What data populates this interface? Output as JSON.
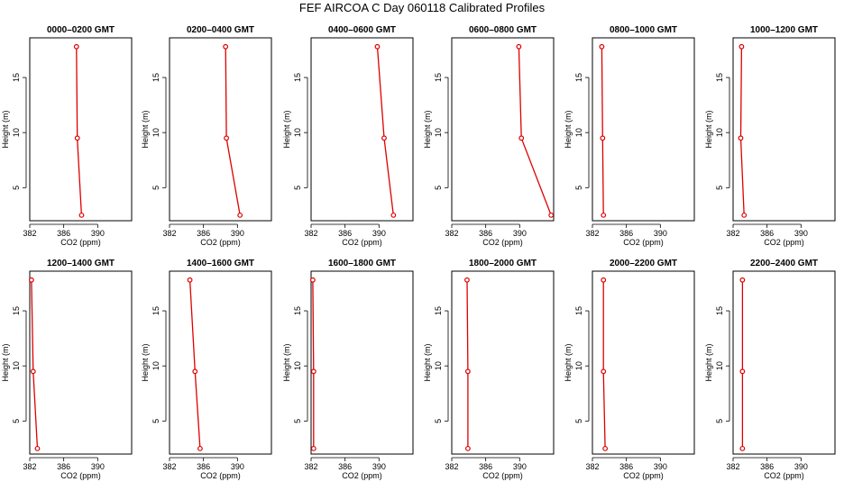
{
  "title": "FEF AIRCOA C  Day 060118  Calibrated Profiles",
  "axis_labels": {
    "x": "CO2 (ppm)",
    "y": "Height (m)"
  },
  "colors": {
    "profile": "#dd0000",
    "frame": "#000000",
    "background": "#ffffff"
  },
  "chart_data": [
    {
      "type": "line",
      "title": "0000–0200 GMT",
      "xlabel": "CO2 (ppm)",
      "ylabel": "Height (m)",
      "xlim": [
        382,
        394
      ],
      "ylim": [
        2,
        18.6
      ],
      "xticks": [
        382,
        386,
        390
      ],
      "yticks": [
        5,
        10,
        15
      ],
      "series": [
        {
          "x": [
            388.1,
            387.6,
            387.5
          ],
          "y": [
            2.5,
            9.5,
            17.8
          ]
        }
      ]
    },
    {
      "type": "line",
      "title": "0200–0400 GMT",
      "xlabel": "CO2 (ppm)",
      "ylabel": "Height (m)",
      "xlim": [
        382,
        394
      ],
      "ylim": [
        2,
        18.6
      ],
      "xticks": [
        382,
        386,
        390
      ],
      "yticks": [
        5,
        10,
        15
      ],
      "series": [
        {
          "x": [
            390.3,
            388.7,
            388.6
          ],
          "y": [
            2.5,
            9.5,
            17.8
          ]
        }
      ]
    },
    {
      "type": "line",
      "title": "0400–0600 GMT",
      "xlabel": "CO2 (ppm)",
      "ylabel": "Height (m)",
      "xlim": [
        382,
        394
      ],
      "ylim": [
        2,
        18.6
      ],
      "xticks": [
        382,
        386,
        390
      ],
      "yticks": [
        5,
        10,
        15
      ],
      "series": [
        {
          "x": [
            391.7,
            390.6,
            389.8
          ],
          "y": [
            2.5,
            9.5,
            17.8
          ]
        }
      ]
    },
    {
      "type": "line",
      "title": "0600–0800 GMT",
      "xlabel": "CO2 (ppm)",
      "ylabel": "Height (m)",
      "xlim": [
        382,
        394
      ],
      "ylim": [
        2,
        18.6
      ],
      "xticks": [
        382,
        386,
        390
      ],
      "yticks": [
        5,
        10,
        15
      ],
      "series": [
        {
          "x": [
            393.7,
            390.2,
            389.9
          ],
          "y": [
            2.5,
            9.5,
            17.8
          ]
        }
      ]
    },
    {
      "type": "line",
      "title": "0800–1000 GMT",
      "xlabel": "CO2 (ppm)",
      "ylabel": "Height (m)",
      "xlim": [
        382,
        394
      ],
      "ylim": [
        2,
        18.6
      ],
      "xticks": [
        382,
        386,
        390
      ],
      "yticks": [
        5,
        10,
        15
      ],
      "series": [
        {
          "x": [
            383.3,
            383.2,
            383.1
          ],
          "y": [
            2.5,
            9.5,
            17.8
          ]
        }
      ]
    },
    {
      "type": "line",
      "title": "1000–1200 GMT",
      "xlabel": "CO2 (ppm)",
      "ylabel": "Height (m)",
      "xlim": [
        382,
        394
      ],
      "ylim": [
        2,
        18.6
      ],
      "xticks": [
        382,
        386,
        390
      ],
      "yticks": [
        5,
        10,
        15
      ],
      "series": [
        {
          "x": [
            383.3,
            382.9,
            383.0
          ],
          "y": [
            2.5,
            9.5,
            17.8
          ]
        }
      ]
    },
    {
      "type": "line",
      "title": "1200–1400 GMT",
      "xlabel": "CO2 (ppm)",
      "ylabel": "Height (m)",
      "xlim": [
        382,
        394
      ],
      "ylim": [
        2,
        18.6
      ],
      "xticks": [
        382,
        386,
        390
      ],
      "yticks": [
        5,
        10,
        15
      ],
      "series": [
        {
          "x": [
            382.9,
            382.4,
            382.2
          ],
          "y": [
            2.5,
            9.5,
            17.8
          ]
        }
      ]
    },
    {
      "type": "line",
      "title": "1400–1600 GMT",
      "xlabel": "CO2 (ppm)",
      "ylabel": "Height (m)",
      "xlim": [
        382,
        394
      ],
      "ylim": [
        2,
        18.6
      ],
      "xticks": [
        382,
        386,
        390
      ],
      "yticks": [
        5,
        10,
        15
      ],
      "series": [
        {
          "x": [
            385.6,
            385.0,
            384.4
          ],
          "y": [
            2.5,
            9.5,
            17.8
          ]
        }
      ]
    },
    {
      "type": "line",
      "title": "1600–1800 GMT",
      "xlabel": "CO2 (ppm)",
      "ylabel": "Height (m)",
      "xlim": [
        382,
        394
      ],
      "ylim": [
        2,
        18.6
      ],
      "xticks": [
        382,
        386,
        390
      ],
      "yticks": [
        5,
        10,
        15
      ],
      "series": [
        {
          "x": [
            382.3,
            382.3,
            382.2
          ],
          "y": [
            2.5,
            9.5,
            17.8
          ]
        }
      ]
    },
    {
      "type": "line",
      "title": "1800–2000 GMT",
      "xlabel": "CO2 (ppm)",
      "ylabel": "Height (m)",
      "xlim": [
        382,
        394
      ],
      "ylim": [
        2,
        18.6
      ],
      "xticks": [
        382,
        386,
        390
      ],
      "yticks": [
        5,
        10,
        15
      ],
      "series": [
        {
          "x": [
            383.9,
            383.9,
            383.8
          ],
          "y": [
            2.5,
            9.5,
            17.8
          ]
        }
      ]
    },
    {
      "type": "line",
      "title": "2000–2200 GMT",
      "xlabel": "CO2 (ppm)",
      "ylabel": "Height (m)",
      "xlim": [
        382,
        394
      ],
      "ylim": [
        2,
        18.6
      ],
      "xticks": [
        382,
        386,
        390
      ],
      "yticks": [
        5,
        10,
        15
      ],
      "series": [
        {
          "x": [
            383.5,
            383.3,
            383.3
          ],
          "y": [
            2.5,
            9.5,
            17.8
          ]
        }
      ]
    },
    {
      "type": "line",
      "title": "2200–2400 GMT",
      "xlabel": "CO2 (ppm)",
      "ylabel": "Height (m)",
      "xlim": [
        382,
        394
      ],
      "ylim": [
        2,
        18.6
      ],
      "xticks": [
        382,
        386,
        390
      ],
      "yticks": [
        5,
        10,
        15
      ],
      "series": [
        {
          "x": [
            383.1,
            383.1,
            383.1
          ],
          "y": [
            2.5,
            9.5,
            17.8
          ]
        }
      ]
    }
  ]
}
